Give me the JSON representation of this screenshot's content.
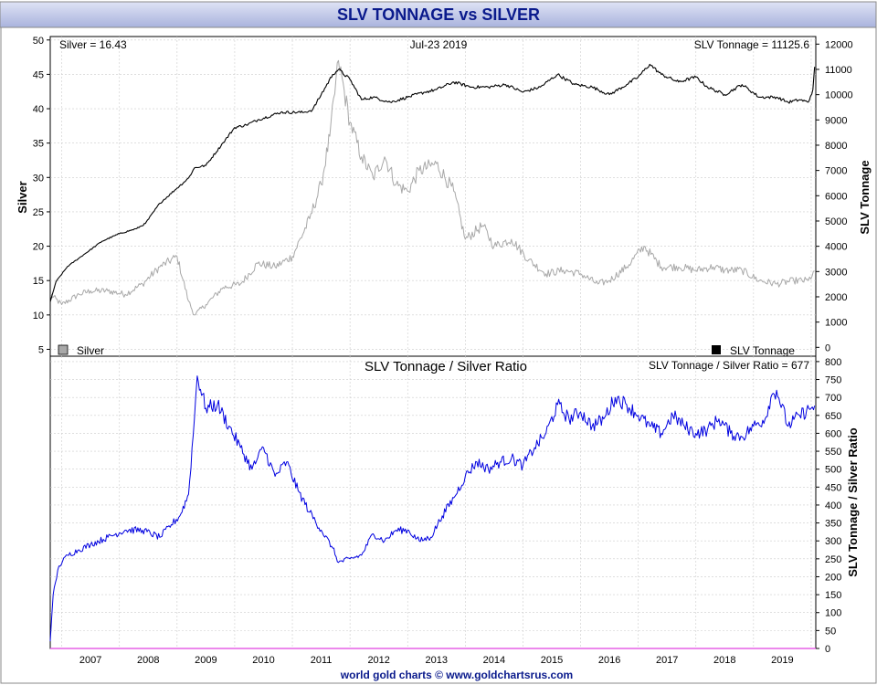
{
  "title": "SLV TONNAGE vs SILVER",
  "footer": "world gold charts © www.goldchartsrus.com",
  "colors": {
    "title_bg_top": "#dfe3f5",
    "title_bg_bottom": "#a9b3dd",
    "title_text": "#0a1a8c",
    "silver": "#a8a8a8",
    "tonnage": "#000000",
    "ratio": "#0000e0",
    "baseline": "#e040e0"
  },
  "chart_data": [
    {
      "type": "line",
      "panel": "top",
      "info_left": "Silver = 16.43",
      "info_center": "Jul-23  2019",
      "info_right": "SLV Tonnage = 11125.6",
      "ylabel_left": "Silver",
      "ylabel_right": "SLV Tonnage",
      "y_left_ticks": [
        5,
        10,
        15,
        20,
        25,
        30,
        35,
        40,
        45,
        50
      ],
      "y_left_lim": [
        4,
        50.5
      ],
      "y_right_ticks": [
        0,
        1000,
        2000,
        3000,
        4000,
        5000,
        6000,
        7000,
        8000,
        9000,
        10000,
        11000,
        12000
      ],
      "y_right_lim": [
        -350,
        12300
      ],
      "legend": [
        {
          "name": "Silver",
          "position": "bottom-left"
        },
        {
          "name": "SLV Tonnage",
          "position": "bottom-right"
        }
      ],
      "series": [
        {
          "name": "Silver",
          "axis": "left",
          "x": [
            2006.3,
            2006.5,
            2006.8,
            2007.0,
            2007.3,
            2007.6,
            2007.9,
            2008.2,
            2008.5,
            2008.7,
            2008.8,
            2009.0,
            2009.3,
            2009.6,
            2009.9,
            2010.2,
            2010.5,
            2010.8,
            2011.0,
            2011.15,
            2011.3,
            2011.5,
            2011.7,
            2011.9,
            2012.1,
            2012.3,
            2012.5,
            2012.7,
            2013.0,
            2013.3,
            2013.5,
            2013.8,
            2014.0,
            2014.3,
            2014.6,
            2014.9,
            2015.2,
            2015.5,
            2015.8,
            2016.0,
            2016.3,
            2016.6,
            2016.9,
            2017.2,
            2017.5,
            2017.8,
            2018.0,
            2018.3,
            2018.6,
            2018.9,
            2019.2,
            2019.45,
            2019.56
          ],
          "values": [
            13,
            11.5,
            13,
            13.5,
            13.5,
            13,
            14.5,
            17,
            18.5,
            12,
            10,
            11.5,
            14,
            14.5,
            17.5,
            17,
            18.5,
            24,
            29,
            36,
            47,
            38,
            33,
            30,
            33,
            29,
            28,
            31,
            32,
            28,
            21,
            23,
            20,
            21,
            18,
            16,
            16.5,
            16,
            14.5,
            15,
            17,
            20,
            17,
            17,
            16.5,
            17,
            16.5,
            16.5,
            15,
            14.5,
            15,
            15,
            16.4
          ]
        },
        {
          "name": "SLV Tonnage",
          "axis": "right",
          "x": [
            2006.3,
            2006.4,
            2006.6,
            2006.9,
            2007.2,
            2007.5,
            2007.8,
            2007.95,
            2008.2,
            2008.5,
            2008.7,
            2008.8,
            2009.0,
            2009.3,
            2009.5,
            2009.7,
            2009.9,
            2010.3,
            2010.7,
            2010.85,
            2011.0,
            2011.2,
            2011.3,
            2011.5,
            2011.7,
            2011.9,
            2012.2,
            2012.5,
            2012.8,
            2013.0,
            2013.3,
            2013.6,
            2013.9,
            2014.2,
            2014.5,
            2014.8,
            2015.1,
            2015.4,
            2015.7,
            2016.0,
            2016.3,
            2016.5,
            2016.7,
            2016.9,
            2017.2,
            2017.5,
            2017.7,
            2018.0,
            2018.3,
            2018.6,
            2018.9,
            2019.1,
            2019.3,
            2019.45,
            2019.53,
            2019.56
          ],
          "values": [
            1800,
            2600,
            3200,
            3700,
            4200,
            4500,
            4700,
            4900,
            5700,
            6300,
            6700,
            7100,
            7200,
            8100,
            8700,
            8800,
            9000,
            9300,
            9300,
            9400,
            10000,
            10800,
            11000,
            10600,
            9800,
            9900,
            9700,
            9900,
            10100,
            10200,
            10500,
            10300,
            10300,
            10400,
            10100,
            10300,
            10800,
            10400,
            10300,
            10000,
            10400,
            10700,
            11200,
            10800,
            10500,
            10700,
            10300,
            10000,
            10400,
            9900,
            9900,
            9700,
            9800,
            9700,
            10200,
            11100
          ]
        }
      ]
    },
    {
      "type": "line",
      "panel": "bottom",
      "title": "SLV Tonnage / Silver Ratio",
      "info_right": "SLV Tonnage / Silver Ratio = 677",
      "ylabel_right": "SLV Tonnage / Silver Ratio",
      "y_right_ticks": [
        0,
        50,
        100,
        150,
        200,
        250,
        300,
        350,
        400,
        450,
        500,
        550,
        600,
        650,
        700,
        750,
        800
      ],
      "y_right_lim": [
        0,
        815
      ],
      "x_ticks": [
        2007,
        2008,
        2009,
        2010,
        2011,
        2012,
        2013,
        2014,
        2015,
        2016,
        2017,
        2018,
        2019
      ],
      "xlim": [
        2006.3,
        2019.58
      ],
      "series": [
        {
          "name": "SLV Tonnage / Silver Ratio",
          "x": [
            2006.3,
            2006.35,
            2006.45,
            2006.6,
            2006.8,
            2007.0,
            2007.3,
            2007.6,
            2007.9,
            2008.2,
            2008.4,
            2008.55,
            2008.7,
            2008.8,
            2008.85,
            2009.0,
            2009.2,
            2009.4,
            2009.6,
            2009.8,
            2010.0,
            2010.2,
            2010.4,
            2010.6,
            2010.8,
            2011.0,
            2011.2,
            2011.3,
            2011.5,
            2011.7,
            2011.9,
            2012.1,
            2012.3,
            2012.5,
            2012.7,
            2012.9,
            2013.1,
            2013.3,
            2013.5,
            2013.7,
            2013.9,
            2014.1,
            2014.3,
            2014.5,
            2014.7,
            2014.9,
            2015.1,
            2015.3,
            2015.5,
            2015.7,
            2015.9,
            2016.1,
            2016.3,
            2016.5,
            2016.7,
            2016.9,
            2017.1,
            2017.3,
            2017.5,
            2017.7,
            2017.9,
            2018.1,
            2018.3,
            2018.5,
            2018.7,
            2018.8,
            2018.9,
            2019.1,
            2019.3,
            2019.5,
            2019.56
          ],
          "values": [
            20,
            150,
            230,
            260,
            275,
            290,
            310,
            330,
            330,
            310,
            345,
            370,
            430,
            640,
            760,
            670,
            680,
            620,
            560,
            500,
            560,
            480,
            520,
            440,
            380,
            330,
            280,
            240,
            250,
            260,
            320,
            300,
            330,
            330,
            300,
            310,
            370,
            420,
            480,
            520,
            500,
            520,
            530,
            510,
            560,
            600,
            680,
            640,
            660,
            620,
            640,
            700,
            680,
            650,
            620,
            600,
            650,
            620,
            600,
            610,
            640,
            600,
            590,
            620,
            640,
            700,
            720,
            620,
            650,
            670,
            677
          ]
        }
      ]
    }
  ]
}
